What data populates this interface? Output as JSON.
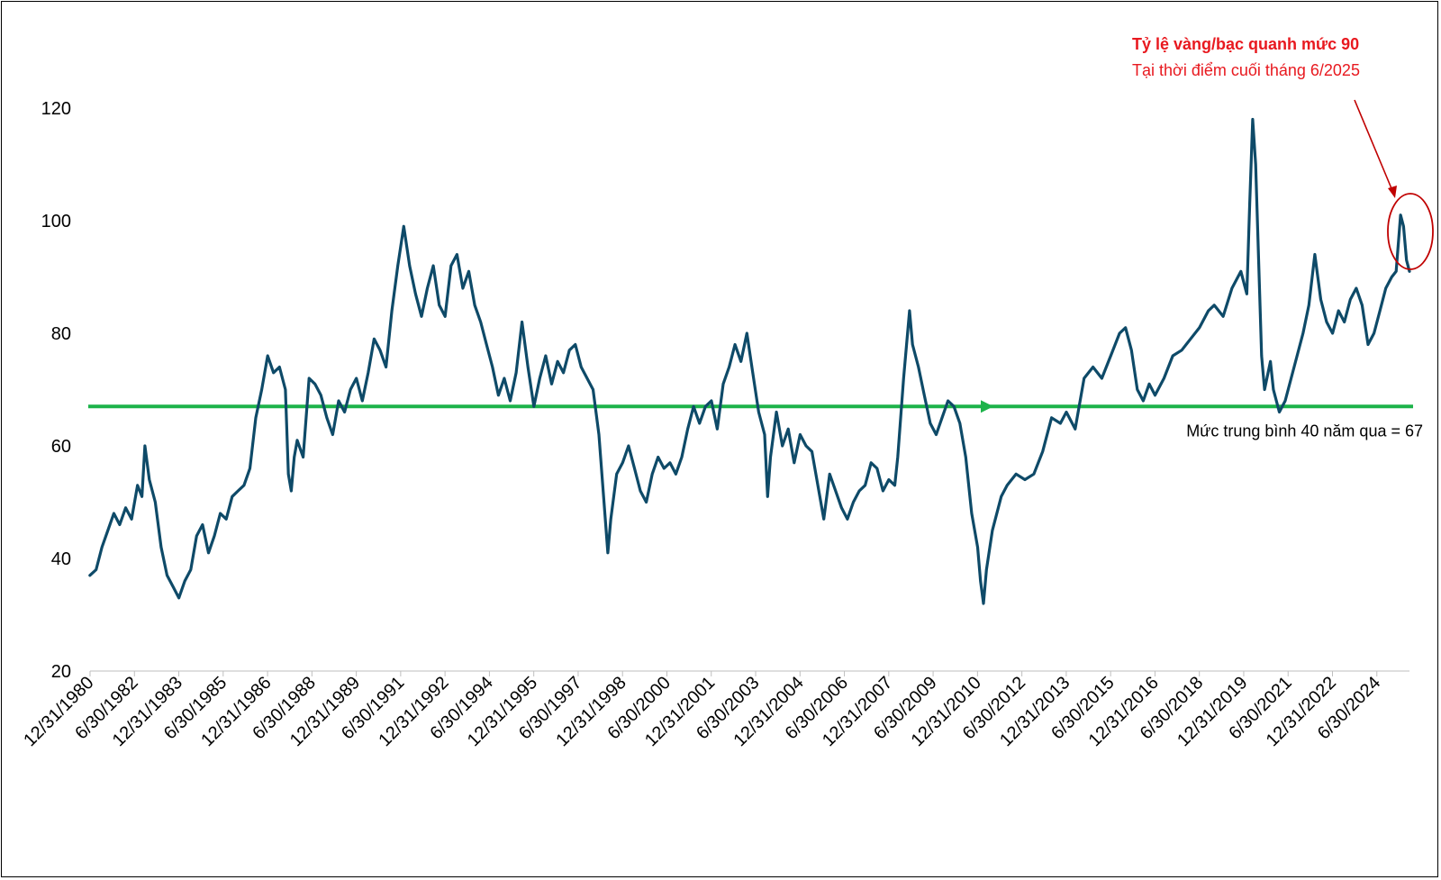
{
  "chart_data": {
    "type": "line",
    "title": "",
    "xlabel": "",
    "ylabel": "",
    "ylim": [
      20,
      120
    ],
    "yticks": [
      20,
      40,
      60,
      80,
      100,
      120
    ],
    "xticks": [
      "12/31/1980",
      "6/30/1982",
      "12/31/1983",
      "6/30/1985",
      "12/31/1986",
      "6/30/1988",
      "12/31/1989",
      "6/30/1991",
      "12/31/1992",
      "6/30/1994",
      "12/31/1995",
      "6/30/1997",
      "12/31/1998",
      "6/30/2000",
      "12/31/2001",
      "6/30/2003",
      "12/31/2004",
      "6/30/2006",
      "12/31/2007",
      "6/30/2009",
      "12/31/2010",
      "6/30/2012",
      "12/31/2013",
      "6/30/2015",
      "12/31/2016",
      "6/30/2018",
      "12/31/2019",
      "6/30/2021",
      "12/31/2022",
      "6/30/2024"
    ],
    "series": [
      {
        "color": "#0e4a68",
        "points": [
          [
            1980.99,
            37
          ],
          [
            1981.2,
            38
          ],
          [
            1981.4,
            42
          ],
          [
            1981.6,
            45
          ],
          [
            1981.8,
            48
          ],
          [
            1982.0,
            46
          ],
          [
            1982.2,
            49
          ],
          [
            1982.4,
            47
          ],
          [
            1982.6,
            53
          ],
          [
            1982.75,
            51
          ],
          [
            1982.85,
            60
          ],
          [
            1983.0,
            54
          ],
          [
            1983.2,
            50
          ],
          [
            1983.4,
            42
          ],
          [
            1983.6,
            37
          ],
          [
            1983.8,
            35
          ],
          [
            1984.0,
            33
          ],
          [
            1984.2,
            36
          ],
          [
            1984.4,
            38
          ],
          [
            1984.6,
            44
          ],
          [
            1984.8,
            46
          ],
          [
            1985.0,
            41
          ],
          [
            1985.2,
            44
          ],
          [
            1985.4,
            48
          ],
          [
            1985.6,
            47
          ],
          [
            1985.8,
            51
          ],
          [
            1986.0,
            52
          ],
          [
            1986.2,
            53
          ],
          [
            1986.4,
            56
          ],
          [
            1986.6,
            65
          ],
          [
            1986.8,
            70
          ],
          [
            1987.0,
            76
          ],
          [
            1987.2,
            73
          ],
          [
            1987.4,
            74
          ],
          [
            1987.6,
            70
          ],
          [
            1987.7,
            55
          ],
          [
            1987.8,
            52
          ],
          [
            1987.9,
            58
          ],
          [
            1988.0,
            61
          ],
          [
            1988.2,
            58
          ],
          [
            1988.4,
            72
          ],
          [
            1988.6,
            71
          ],
          [
            1988.8,
            69
          ],
          [
            1989.0,
            65
          ],
          [
            1989.2,
            62
          ],
          [
            1989.4,
            68
          ],
          [
            1989.6,
            66
          ],
          [
            1989.8,
            70
          ],
          [
            1990.0,
            72
          ],
          [
            1990.2,
            68
          ],
          [
            1990.4,
            73
          ],
          [
            1990.6,
            79
          ],
          [
            1990.8,
            77
          ],
          [
            1991.0,
            74
          ],
          [
            1991.2,
            84
          ],
          [
            1991.4,
            92
          ],
          [
            1991.6,
            99
          ],
          [
            1991.8,
            92
          ],
          [
            1992.0,
            87
          ],
          [
            1992.2,
            83
          ],
          [
            1992.4,
            88
          ],
          [
            1992.6,
            92
          ],
          [
            1992.8,
            85
          ],
          [
            1993.0,
            83
          ],
          [
            1993.2,
            92
          ],
          [
            1993.4,
            94
          ],
          [
            1993.6,
            88
          ],
          [
            1993.8,
            91
          ],
          [
            1994.0,
            85
          ],
          [
            1994.2,
            82
          ],
          [
            1994.4,
            78
          ],
          [
            1994.6,
            74
          ],
          [
            1994.8,
            69
          ],
          [
            1995.0,
            72
          ],
          [
            1995.2,
            68
          ],
          [
            1995.4,
            73
          ],
          [
            1995.6,
            82
          ],
          [
            1995.8,
            74
          ],
          [
            1996.0,
            67
          ],
          [
            1996.2,
            72
          ],
          [
            1996.4,
            76
          ],
          [
            1996.6,
            71
          ],
          [
            1996.8,
            75
          ],
          [
            1997.0,
            73
          ],
          [
            1997.2,
            77
          ],
          [
            1997.4,
            78
          ],
          [
            1997.6,
            74
          ],
          [
            1997.8,
            72
          ],
          [
            1998.0,
            70
          ],
          [
            1998.2,
            62
          ],
          [
            1998.4,
            48
          ],
          [
            1998.5,
            41
          ],
          [
            1998.6,
            47
          ],
          [
            1998.8,
            55
          ],
          [
            1999.0,
            57
          ],
          [
            1999.2,
            60
          ],
          [
            1999.4,
            56
          ],
          [
            1999.6,
            52
          ],
          [
            1999.8,
            50
          ],
          [
            2000.0,
            55
          ],
          [
            2000.2,
            58
          ],
          [
            2000.4,
            56
          ],
          [
            2000.6,
            57
          ],
          [
            2000.8,
            55
          ],
          [
            2001.0,
            58
          ],
          [
            2001.2,
            63
          ],
          [
            2001.4,
            67
          ],
          [
            2001.6,
            64
          ],
          [
            2001.8,
            67
          ],
          [
            2002.0,
            68
          ],
          [
            2002.2,
            63
          ],
          [
            2002.4,
            71
          ],
          [
            2002.6,
            74
          ],
          [
            2002.8,
            78
          ],
          [
            2003.0,
            75
          ],
          [
            2003.2,
            80
          ],
          [
            2003.4,
            73
          ],
          [
            2003.6,
            66
          ],
          [
            2003.8,
            62
          ],
          [
            2003.9,
            51
          ],
          [
            2004.0,
            58
          ],
          [
            2004.2,
            66
          ],
          [
            2004.4,
            60
          ],
          [
            2004.6,
            63
          ],
          [
            2004.8,
            57
          ],
          [
            2005.0,
            62
          ],
          [
            2005.2,
            60
          ],
          [
            2005.4,
            59
          ],
          [
            2005.6,
            53
          ],
          [
            2005.8,
            47
          ],
          [
            2006.0,
            55
          ],
          [
            2006.2,
            52
          ],
          [
            2006.4,
            49
          ],
          [
            2006.6,
            47
          ],
          [
            2006.8,
            50
          ],
          [
            2007.0,
            52
          ],
          [
            2007.2,
            53
          ],
          [
            2007.4,
            57
          ],
          [
            2007.6,
            56
          ],
          [
            2007.8,
            52
          ],
          [
            2008.0,
            54
          ],
          [
            2008.2,
            53
          ],
          [
            2008.3,
            58
          ],
          [
            2008.5,
            72
          ],
          [
            2008.7,
            84
          ],
          [
            2008.8,
            78
          ],
          [
            2009.0,
            74
          ],
          [
            2009.2,
            69
          ],
          [
            2009.4,
            64
          ],
          [
            2009.6,
            62
          ],
          [
            2009.8,
            65
          ],
          [
            2010.0,
            68
          ],
          [
            2010.2,
            67
          ],
          [
            2010.4,
            64
          ],
          [
            2010.6,
            58
          ],
          [
            2010.8,
            48
          ],
          [
            2011.0,
            42
          ],
          [
            2011.1,
            36
          ],
          [
            2011.2,
            32
          ],
          [
            2011.3,
            38
          ],
          [
            2011.5,
            45
          ],
          [
            2011.8,
            51
          ],
          [
            2012.0,
            53
          ],
          [
            2012.3,
            55
          ],
          [
            2012.6,
            54
          ],
          [
            2012.9,
            55
          ],
          [
            2013.2,
            59
          ],
          [
            2013.5,
            65
          ],
          [
            2013.8,
            64
          ],
          [
            2014.0,
            66
          ],
          [
            2014.3,
            63
          ],
          [
            2014.6,
            72
          ],
          [
            2014.9,
            74
          ],
          [
            2015.2,
            72
          ],
          [
            2015.5,
            76
          ],
          [
            2015.8,
            80
          ],
          [
            2016.0,
            81
          ],
          [
            2016.2,
            77
          ],
          [
            2016.4,
            70
          ],
          [
            2016.6,
            68
          ],
          [
            2016.8,
            71
          ],
          [
            2017.0,
            69
          ],
          [
            2017.3,
            72
          ],
          [
            2017.6,
            76
          ],
          [
            2017.9,
            77
          ],
          [
            2018.2,
            79
          ],
          [
            2018.5,
            81
          ],
          [
            2018.8,
            84
          ],
          [
            2019.0,
            85
          ],
          [
            2019.3,
            83
          ],
          [
            2019.6,
            88
          ],
          [
            2019.9,
            91
          ],
          [
            2020.1,
            87
          ],
          [
            2020.2,
            103
          ],
          [
            2020.3,
            118
          ],
          [
            2020.4,
            110
          ],
          [
            2020.5,
            93
          ],
          [
            2020.6,
            76
          ],
          [
            2020.7,
            70
          ],
          [
            2020.9,
            75
          ],
          [
            2021.0,
            70
          ],
          [
            2021.2,
            66
          ],
          [
            2021.4,
            68
          ],
          [
            2021.6,
            72
          ],
          [
            2021.8,
            76
          ],
          [
            2022.0,
            80
          ],
          [
            2022.2,
            85
          ],
          [
            2022.4,
            94
          ],
          [
            2022.6,
            86
          ],
          [
            2022.8,
            82
          ],
          [
            2023.0,
            80
          ],
          [
            2023.2,
            84
          ],
          [
            2023.4,
            82
          ],
          [
            2023.6,
            86
          ],
          [
            2023.8,
            88
          ],
          [
            2024.0,
            85
          ],
          [
            2024.2,
            78
          ],
          [
            2024.4,
            80
          ],
          [
            2024.6,
            84
          ],
          [
            2024.8,
            88
          ],
          [
            2025.0,
            90
          ],
          [
            2025.15,
            91
          ],
          [
            2025.3,
            101
          ],
          [
            2025.4,
            99
          ],
          [
            2025.5,
            93
          ],
          [
            2025.6,
            91
          ]
        ]
      }
    ],
    "average": {
      "value": 67,
      "label": "Mức trung bình 40 năm qua = 67",
      "color": "#1db34a"
    },
    "annotation": {
      "title": "Tỷ lệ vàng/bạc quanh mức 90",
      "subtitle": "Tại thời điểm cuối tháng 6/2025",
      "color": "#c00000"
    },
    "grid": false,
    "legend": "none"
  }
}
